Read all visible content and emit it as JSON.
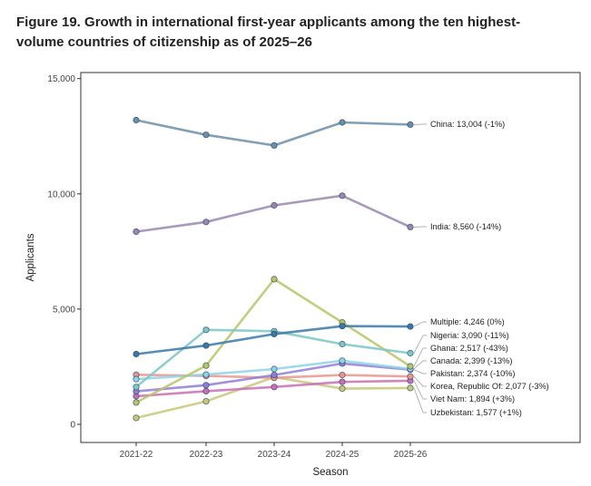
{
  "chart_data": {
    "type": "line",
    "title": "Figure 19. Growth in international first-year applicants among the ten highest-volume countries of citizenship as of 2025–26",
    "xlabel": "Season",
    "ylabel": "Applicants",
    "categories": [
      "2021-22",
      "2022-23",
      "2023-24",
      "2024-25",
      "2025-26"
    ],
    "ylim": [
      -700,
      15000
    ],
    "yticks": [
      0,
      5000,
      10000,
      15000
    ],
    "ytick_labels": [
      "0",
      "5,000",
      "10,000",
      "15,000"
    ],
    "grid": false,
    "series": [
      {
        "name": "China",
        "label": "China: 13,004 (-1%)",
        "color": "#6b8fa8",
        "values": [
          13200,
          12560,
          12100,
          13100,
          13004
        ]
      },
      {
        "name": "India",
        "label": "India: 8,560 (-14%)",
        "color": "#9a87b0",
        "values": [
          8360,
          8780,
          9500,
          9920,
          8560
        ]
      },
      {
        "name": "Multiple",
        "label": "Multiple: 4,246 (0%)",
        "color": "#3a78a8",
        "values": [
          3050,
          3420,
          3920,
          4260,
          4246
        ]
      },
      {
        "name": "Nigeria",
        "label": "Nigeria: 3,090 (-11%)",
        "color": "#7fc6c6",
        "values": [
          1620,
          4100,
          4040,
          3480,
          3090
        ]
      },
      {
        "name": "Ghana",
        "label": "Ghana: 2,517 (-43%)",
        "color": "#b9c46a",
        "values": [
          950,
          2550,
          6300,
          4420,
          2517
        ]
      },
      {
        "name": "Canada",
        "label": "Canada: 2,399 (-13%)",
        "color": "#8fd3e6",
        "values": [
          1960,
          2160,
          2400,
          2760,
          2399
        ]
      },
      {
        "name": "Pakistan",
        "label": "Pakistan: 2,374 (-10%)",
        "color": "#8f7fd6",
        "values": [
          1430,
          1700,
          2140,
          2640,
          2374
        ]
      },
      {
        "name": "Korea, Republic Of",
        "label": "Korea, Republic Of: 2,077 (-3%)",
        "color": "#e8968f",
        "values": [
          2150,
          2100,
          2020,
          2140,
          2077
        ]
      },
      {
        "name": "Viet Nam",
        "label": "Viet Nam: 1,894 (+3%)",
        "color": "#c86fb5",
        "values": [
          1220,
          1440,
          1620,
          1840,
          1894
        ]
      },
      {
        "name": "Uzbekistan",
        "label": "Uzbekistan: 1,577 (+1%)",
        "color": "#c8c87a",
        "values": [
          280,
          1000,
          2050,
          1550,
          1577
        ]
      }
    ]
  }
}
